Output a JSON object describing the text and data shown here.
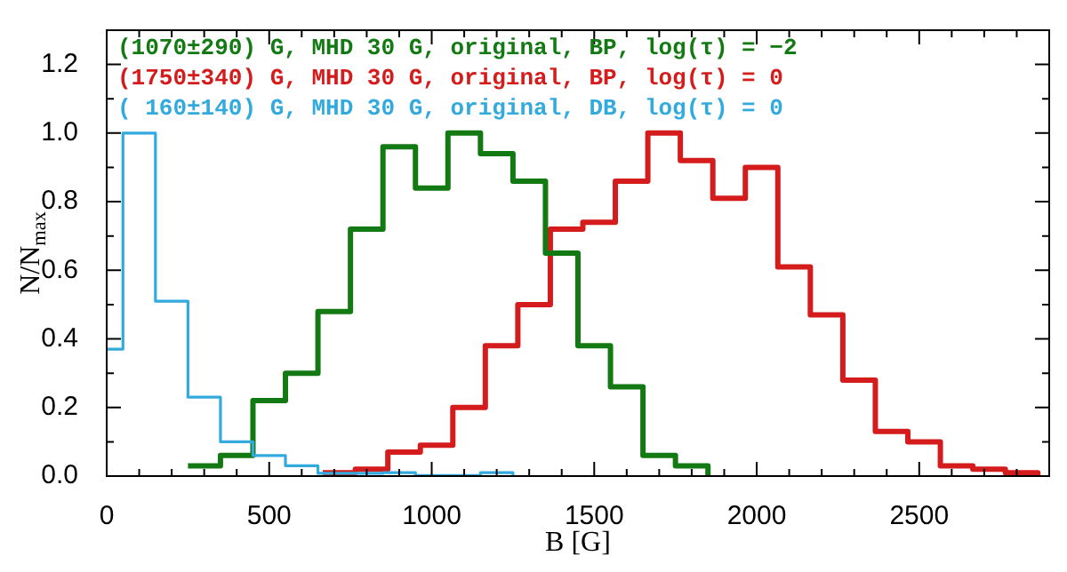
{
  "chart_data": {
    "type": "step",
    "xlabel": "B [G]",
    "ylabel": "N/N$_{max}$",
    "xlim": [
      0,
      2900
    ],
    "ylim": [
      0,
      1.3
    ],
    "xticks": [
      0,
      {
        "value": 100,
        "label": null
      },
      {
        "value": 200,
        "label": null
      },
      {
        "value": 300,
        "label": null
      },
      {
        "value": 400,
        "label": null
      },
      500,
      {
        "value": 600,
        "label": null
      },
      {
        "value": 700,
        "label": null
      },
      {
        "value": 800,
        "label": null
      },
      {
        "value": 900,
        "label": null
      },
      1000,
      {
        "value": 1100,
        "label": null
      },
      {
        "value": 1200,
        "label": null
      },
      {
        "value": 1300,
        "label": null
      },
      {
        "value": 1400,
        "label": null
      },
      1500,
      {
        "value": 1600,
        "label": null
      },
      {
        "value": 1700,
        "label": null
      },
      {
        "value": 1800,
        "label": null
      },
      {
        "value": 1900,
        "label": null
      },
      2000,
      {
        "value": 2100,
        "label": null
      },
      {
        "value": 2200,
        "label": null
      },
      {
        "value": 2300,
        "label": null
      },
      {
        "value": 2400,
        "label": null
      },
      2500,
      {
        "value": 2600,
        "label": null
      },
      {
        "value": 2700,
        "label": null
      },
      {
        "value": 2800,
        "label": null
      }
    ],
    "yticks": [
      {
        "value": 0,
        "label": "0.0"
      },
      {
        "value": 0.1,
        "label": null
      },
      0.2,
      {
        "value": 0.3,
        "label": null
      },
      0.4,
      {
        "value": 0.5,
        "label": null
      },
      0.6,
      {
        "value": 0.7,
        "label": null
      },
      0.8,
      {
        "value": 0.9,
        "label": null
      },
      {
        "value": 1,
        "label": "1.0"
      },
      {
        "value": 1.1,
        "label": null
      },
      1.2
    ],
    "legend": "top left",
    "series": [
      {
        "name": "(1070±290) G, MHD 30 G, original, BP, log(τ) = −2",
        "color": "#137a13",
        "x": [
          250,
          350,
          450,
          550,
          650,
          750,
          850,
          950,
          1050,
          1150,
          1250,
          1350,
          1450,
          1550,
          1650,
          1750,
          1850
        ],
        "values": [
          0.03,
          0.06,
          0.22,
          0.3,
          0.48,
          0.72,
          0.96,
          0.84,
          1.0,
          0.94,
          0.86,
          0.65,
          0.38,
          0.26,
          0.06,
          0.03,
          0
        ]
      },
      {
        "name": "(1750±340) G, MHD 30 G, original, BP, log(τ) = 0",
        "color": "#d41c1c",
        "x": [
          665,
          765,
          865,
          965,
          1065,
          1165,
          1265,
          1365,
          1465,
          1565,
          1665,
          1765,
          1865,
          1965,
          2065,
          2165,
          2265,
          2365,
          2465,
          2565,
          2665,
          2765,
          2865
        ],
        "values": [
          0.01,
          0.02,
          0.07,
          0.09,
          0.2,
          0.38,
          0.5,
          0.72,
          0.74,
          0.86,
          1.0,
          0.92,
          0.81,
          0.9,
          0.61,
          0.47,
          0.28,
          0.13,
          0.1,
          0.03,
          0.02,
          0.01,
          0
        ]
      },
      {
        "name": "( 160±140) G, MHD 30 G, original, DB, log(τ) = 0",
        "color": "#33aadd",
        "x": [
          0,
          50,
          150,
          250,
          350,
          450,
          550,
          650,
          750,
          850,
          950,
          1050,
          1150,
          1250
        ],
        "values": [
          0.37,
          1.0,
          0.51,
          0.23,
          0.1,
          0.06,
          0.03,
          0.008,
          0.008,
          0.01,
          0.002,
          0.002,
          0.01,
          0
        ]
      }
    ]
  }
}
